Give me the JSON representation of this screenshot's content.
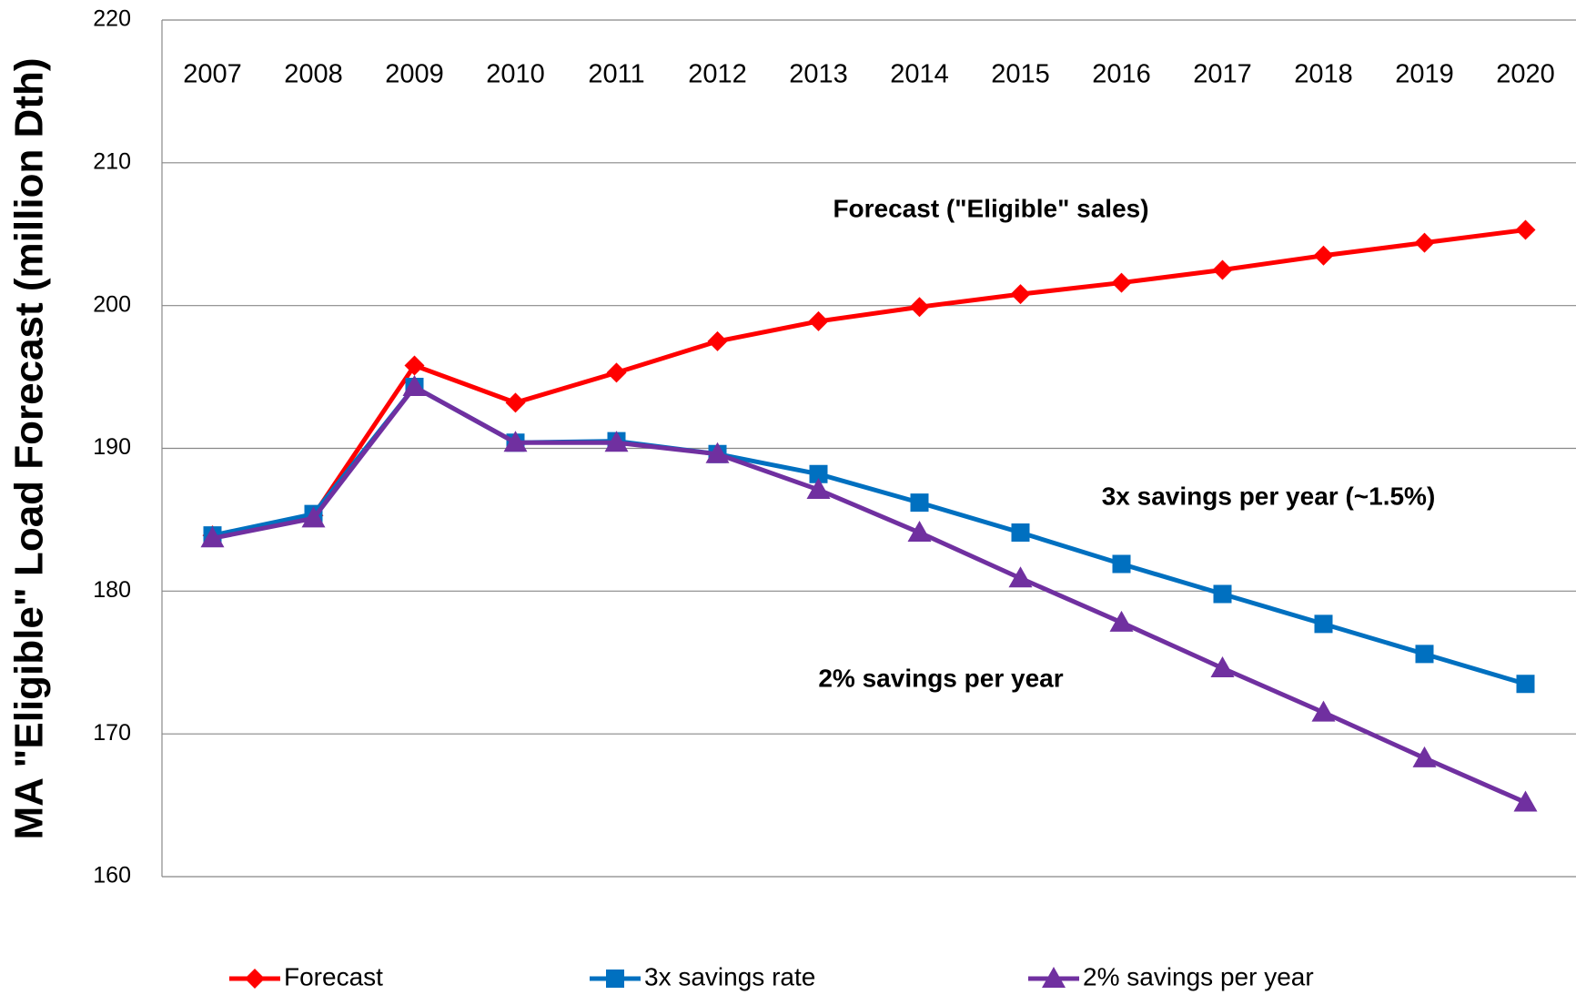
{
  "chart_data": {
    "type": "line",
    "y_label": "MA \"Eligible\" Load Forecast (million Dth)",
    "categories": [
      "2007",
      "2008",
      "2009",
      "2010",
      "2011",
      "2012",
      "2013",
      "2014",
      "2015",
      "2016",
      "2017",
      "2018",
      "2019",
      "2020"
    ],
    "series": [
      {
        "name": "Forecast",
        "color": "#ff0000",
        "marker": "diamond",
        "values": [
          183.9,
          185.3,
          195.8,
          193.2,
          195.3,
          197.5,
          198.9,
          199.9,
          200.8,
          201.6,
          202.5,
          203.5,
          204.4,
          205.3
        ]
      },
      {
        "name": "3x savings rate",
        "color": "#0070c0",
        "marker": "square",
        "values": [
          183.9,
          185.4,
          194.3,
          190.4,
          190.5,
          189.6,
          188.2,
          186.2,
          184.1,
          181.9,
          179.8,
          177.7,
          175.6,
          173.5
        ]
      },
      {
        "name": "2% savings per year",
        "color": "#7030a0",
        "marker": "triangle",
        "values": [
          183.7,
          185.1,
          194.3,
          190.4,
          190.4,
          189.6,
          187.1,
          184.1,
          180.9,
          177.8,
          174.6,
          171.5,
          168.3,
          165.2
        ]
      }
    ],
    "annotations": [
      "Forecast (\"Eligible\" sales)",
      "3x savings per year (~1.5%)",
      "2% savings per year"
    ],
    "ylim": [
      160,
      220
    ],
    "yticks": [
      160,
      170,
      180,
      190,
      200,
      210,
      220
    ],
    "grid": true,
    "legend": "bottom"
  }
}
